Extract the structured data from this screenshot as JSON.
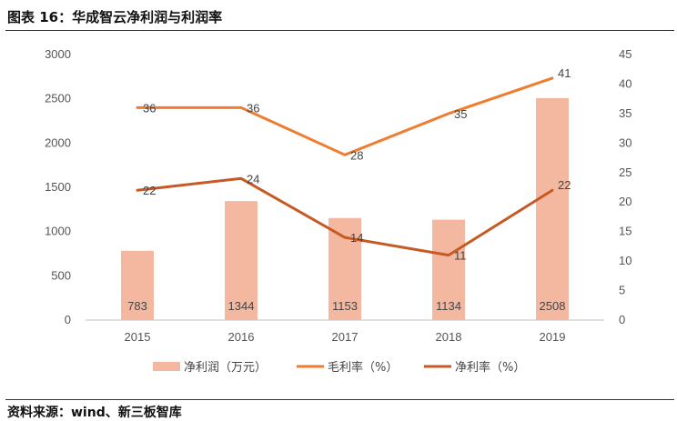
{
  "figure": {
    "title": "图表 16：华成智云净利润与利润率",
    "source": "资料来源：wind、新三板智库"
  },
  "chart_data": {
    "type": "bar+line",
    "categories": [
      "2015",
      "2016",
      "2017",
      "2018",
      "2019"
    ],
    "left_axis": {
      "min": 0,
      "max": 3000,
      "ticks": [
        "0",
        "500",
        "1000",
        "1500",
        "2000",
        "2500",
        "3000"
      ]
    },
    "right_axis": {
      "min": 0,
      "max": 45,
      "ticks": [
        "0",
        "5",
        "10",
        "15",
        "20",
        "25",
        "30",
        "35",
        "40",
        "45"
      ]
    },
    "series": [
      {
        "name": "净利润（万元）",
        "kind": "bar",
        "axis": "left",
        "color": "#f4b8a0",
        "values": [
          783,
          1344,
          1153,
          1134,
          2508
        ],
        "labels": [
          "783",
          "1344",
          "1153",
          "1134",
          "2508"
        ]
      },
      {
        "name": "毛利率（%）",
        "kind": "line",
        "axis": "right",
        "color": "#ed7d31",
        "values": [
          36,
          36,
          28,
          35,
          41
        ],
        "labels": [
          "36",
          "36",
          "28",
          "35",
          "41"
        ]
      },
      {
        "name": "净利率（%）",
        "kind": "line",
        "axis": "right",
        "color": "#c55a24",
        "values": [
          22,
          24,
          14,
          11,
          22
        ],
        "labels": [
          "22",
          "24",
          "14",
          "11",
          "22"
        ]
      }
    ],
    "grid": false,
    "legend": "bottom"
  }
}
